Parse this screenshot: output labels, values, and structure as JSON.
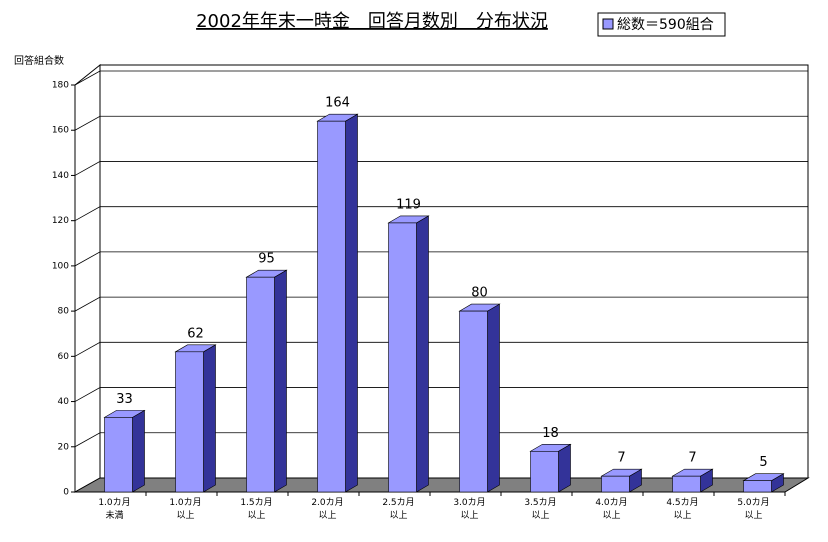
{
  "chart_data": {
    "type": "bar",
    "title": "2002年年末一時金　回答月数別　分布状況",
    "y_label": "回答組合数",
    "categories": [
      "1.0カ月\n未満",
      "1.0カ月\n以上",
      "1.5カ月\n以上",
      "2.0カ月\n以上",
      "2.5カ月\n以上",
      "3.0カ月\n以上",
      "3.5カ月\n以上",
      "4.0カ月\n以上",
      "4.5カ月\n以上",
      "5.0カ月\n以上"
    ],
    "series": [
      {
        "name": "総数＝590組合",
        "color": "#9999ff",
        "values": [
          33,
          62,
          95,
          164,
          119,
          80,
          18,
          7,
          7,
          5
        ]
      }
    ],
    "ylim": [
      0,
      180
    ],
    "yticks": [
      0,
      20,
      40,
      60,
      80,
      100,
      120,
      140,
      160,
      180
    ],
    "grid": true
  }
}
